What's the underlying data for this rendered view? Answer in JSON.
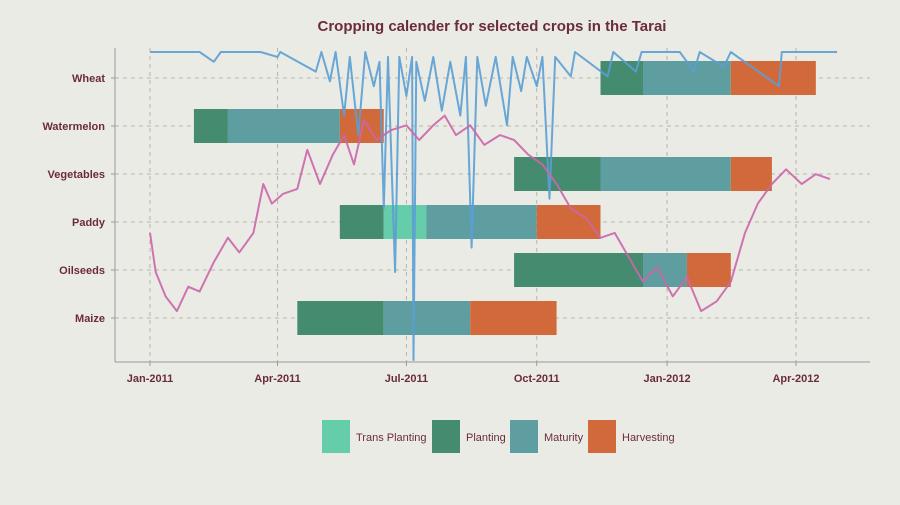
{
  "chart_data": {
    "type": "gantt",
    "title": "Cropping calender for selected crops in the Tarai",
    "xlabel": "",
    "ylabel": "",
    "x_ticks": [
      "Jan-2011",
      "Apr-2011",
      "Jul-2011",
      "Oct-2011",
      "Jan-2012",
      "Apr-2012"
    ],
    "x_tick_dates": [
      "2011-01-01",
      "2011-04-01",
      "2011-07-01",
      "2011-10-01",
      "2012-01-01",
      "2012-04-01"
    ],
    "x_range": [
      "2011-01-01",
      "2012-05-01"
    ],
    "categories": [
      "Maize",
      "Oilseeds",
      "Paddy",
      "Vegetables",
      "Watermelon",
      "Wheat"
    ],
    "grid": true,
    "legend": {
      "position": "bottom",
      "items": [
        "Trans Planting",
        "Planting",
        "Maturity",
        "Harvesting"
      ]
    },
    "colors": {
      "Trans Planting": "#66cdaa",
      "Planting": "#448b70",
      "Maturity": "#5f9ea0",
      "Harvesting": "#d2693a",
      "line_blue": "#5a9fd4",
      "line_pink": "#cc66aa"
    },
    "tasks": [
      {
        "crop": "Wheat",
        "stage": "Planting",
        "start": "2011-11-15",
        "end": "2011-12-15"
      },
      {
        "crop": "Wheat",
        "stage": "Planting",
        "start": "2011-12-15",
        "end": "2011-12-15"
      },
      {
        "crop": "Wheat",
        "stage": "Maturity",
        "start": "2011-12-15",
        "end": "2012-02-15"
      },
      {
        "crop": "Wheat",
        "stage": "Harvesting",
        "start": "2012-02-15",
        "end": "2012-04-15"
      },
      {
        "crop": "Watermelon",
        "stage": "Planting",
        "start": "2011-02-01",
        "end": "2011-02-25"
      },
      {
        "crop": "Watermelon",
        "stage": "Maturity",
        "start": "2011-02-25",
        "end": "2011-05-15"
      },
      {
        "crop": "Watermelon",
        "stage": "Harvesting",
        "start": "2011-05-15",
        "end": "2011-06-15"
      },
      {
        "crop": "Vegetables",
        "stage": "Planting",
        "start": "2011-09-15",
        "end": "2011-11-15"
      },
      {
        "crop": "Vegetables",
        "stage": "Maturity",
        "start": "2011-11-15",
        "end": "2012-02-15"
      },
      {
        "crop": "Vegetables",
        "stage": "Harvesting",
        "start": "2012-02-15",
        "end": "2012-03-15"
      },
      {
        "crop": "Paddy",
        "stage": "Planting",
        "start": "2011-05-15",
        "end": "2011-06-15"
      },
      {
        "crop": "Paddy",
        "stage": "Trans Planting",
        "start": "2011-06-15",
        "end": "2011-07-15"
      },
      {
        "crop": "Paddy",
        "stage": "Maturity",
        "start": "2011-07-15",
        "end": "2011-10-01"
      },
      {
        "crop": "Paddy",
        "stage": "Harvesting",
        "start": "2011-10-01",
        "end": "2011-11-15"
      },
      {
        "crop": "Oilseeds",
        "stage": "Planting",
        "start": "2011-09-15",
        "end": "2011-12-15"
      },
      {
        "crop": "Oilseeds",
        "stage": "Maturity",
        "start": "2011-12-15",
        "end": "2012-01-15"
      },
      {
        "crop": "Oilseeds",
        "stage": "Harvesting",
        "start": "2012-01-15",
        "end": "2012-02-15"
      },
      {
        "crop": "Maize",
        "stage": "Planting",
        "start": "2011-04-15",
        "end": "2011-06-15"
      },
      {
        "crop": "Maize",
        "stage": "Maturity",
        "start": "2011-06-15",
        "end": "2011-08-15"
      },
      {
        "crop": "Maize",
        "stage": "Harvesting",
        "start": "2011-08-15",
        "end": "2011-10-15"
      }
    ],
    "line_series": [
      {
        "color_key": "line_blue",
        "points": [
          [
            "2011-01-01",
            6.3
          ],
          [
            "2011-01-15",
            6.3
          ],
          [
            "2011-02-05",
            6.3
          ],
          [
            "2011-02-15",
            6.1
          ],
          [
            "2011-02-20",
            6.3
          ],
          [
            "2011-03-20",
            6.3
          ],
          [
            "2011-04-01",
            6.2
          ],
          [
            "2011-04-03",
            6.3
          ],
          [
            "2011-04-28",
            5.9
          ],
          [
            "2011-05-02",
            6.3
          ],
          [
            "2011-05-08",
            5.7
          ],
          [
            "2011-05-12",
            6.3
          ],
          [
            "2011-05-18",
            5.0
          ],
          [
            "2011-05-22",
            6.2
          ],
          [
            "2011-05-28",
            4.6
          ],
          [
            "2011-06-02",
            6.3
          ],
          [
            "2011-06-08",
            5.6
          ],
          [
            "2011-06-12",
            6.1
          ],
          [
            "2011-06-15",
            3.1
          ],
          [
            "2011-06-18",
            6.2
          ],
          [
            "2011-06-23",
            1.8
          ],
          [
            "2011-06-26",
            6.2
          ],
          [
            "2011-07-01",
            5.4
          ],
          [
            "2011-07-05",
            6.2
          ],
          [
            "2011-07-06",
            0.0
          ],
          [
            "2011-07-08",
            6.1
          ],
          [
            "2011-07-14",
            5.3
          ],
          [
            "2011-07-20",
            6.2
          ],
          [
            "2011-07-26",
            5.1
          ],
          [
            "2011-08-01",
            6.1
          ],
          [
            "2011-08-08",
            5.0
          ],
          [
            "2011-08-12",
            6.2
          ],
          [
            "2011-08-16",
            2.3
          ],
          [
            "2011-08-20",
            6.2
          ],
          [
            "2011-08-26",
            5.2
          ],
          [
            "2011-09-02",
            6.2
          ],
          [
            "2011-09-10",
            4.8
          ],
          [
            "2011-09-14",
            6.2
          ],
          [
            "2011-09-20",
            5.5
          ],
          [
            "2011-09-24",
            6.2
          ],
          [
            "2011-10-01",
            5.6
          ],
          [
            "2011-10-05",
            6.2
          ],
          [
            "2011-10-10",
            3.3
          ],
          [
            "2011-10-14",
            6.2
          ],
          [
            "2011-10-25",
            5.8
          ],
          [
            "2011-10-28",
            6.3
          ],
          [
            "2011-11-20",
            5.8
          ],
          [
            "2011-11-24",
            6.3
          ],
          [
            "2011-12-10",
            5.9
          ],
          [
            "2011-12-14",
            6.3
          ],
          [
            "2012-01-10",
            6.3
          ],
          [
            "2012-01-20",
            5.9
          ],
          [
            "2012-01-24",
            6.3
          ],
          [
            "2012-02-10",
            6.0
          ],
          [
            "2012-02-15",
            6.3
          ],
          [
            "2012-03-20",
            5.6
          ],
          [
            "2012-03-22",
            6.3
          ],
          [
            "2012-03-30",
            6.3
          ],
          [
            "2012-04-30",
            6.3
          ]
        ]
      },
      {
        "color_key": "line_pink",
        "points": [
          [
            "2011-01-01",
            2.6
          ],
          [
            "2011-01-05",
            1.8
          ],
          [
            "2011-01-12",
            1.3
          ],
          [
            "2011-01-20",
            1.0
          ],
          [
            "2011-01-28",
            1.5
          ],
          [
            "2011-02-05",
            1.4
          ],
          [
            "2011-02-15",
            2.0
          ],
          [
            "2011-02-25",
            2.5
          ],
          [
            "2011-03-05",
            2.2
          ],
          [
            "2011-03-15",
            2.6
          ],
          [
            "2011-03-22",
            3.6
          ],
          [
            "2011-03-28",
            3.2
          ],
          [
            "2011-04-05",
            3.4
          ],
          [
            "2011-04-15",
            3.5
          ],
          [
            "2011-04-22",
            4.3
          ],
          [
            "2011-05-01",
            3.6
          ],
          [
            "2011-05-10",
            4.2
          ],
          [
            "2011-05-18",
            4.6
          ],
          [
            "2011-05-25",
            4.0
          ],
          [
            "2011-06-01",
            4.9
          ],
          [
            "2011-06-10",
            4.5
          ],
          [
            "2011-06-20",
            4.7
          ],
          [
            "2011-07-01",
            4.8
          ],
          [
            "2011-07-10",
            4.5
          ],
          [
            "2011-07-20",
            4.8
          ],
          [
            "2011-07-28",
            5.0
          ],
          [
            "2011-08-05",
            4.6
          ],
          [
            "2011-08-15",
            4.8
          ],
          [
            "2011-08-25",
            4.4
          ],
          [
            "2011-09-05",
            4.6
          ],
          [
            "2011-09-15",
            4.5
          ],
          [
            "2011-09-25",
            4.2
          ],
          [
            "2011-10-05",
            4.0
          ],
          [
            "2011-10-15",
            3.6
          ],
          [
            "2011-10-25",
            3.1
          ],
          [
            "2011-11-05",
            2.9
          ],
          [
            "2011-11-15",
            2.5
          ],
          [
            "2011-11-25",
            2.6
          ],
          [
            "2011-12-05",
            2.1
          ],
          [
            "2011-12-15",
            1.6
          ],
          [
            "2011-12-25",
            1.9
          ],
          [
            "2012-01-05",
            1.3
          ],
          [
            "2012-01-15",
            1.7
          ],
          [
            "2012-01-25",
            1.0
          ],
          [
            "2012-02-05",
            1.2
          ],
          [
            "2012-02-15",
            1.6
          ],
          [
            "2012-02-25",
            2.6
          ],
          [
            "2012-03-05",
            3.2
          ],
          [
            "2012-03-15",
            3.6
          ],
          [
            "2012-03-25",
            3.9
          ],
          [
            "2012-04-05",
            3.6
          ],
          [
            "2012-04-15",
            3.8
          ],
          [
            "2012-04-25",
            3.7
          ]
        ]
      }
    ]
  }
}
